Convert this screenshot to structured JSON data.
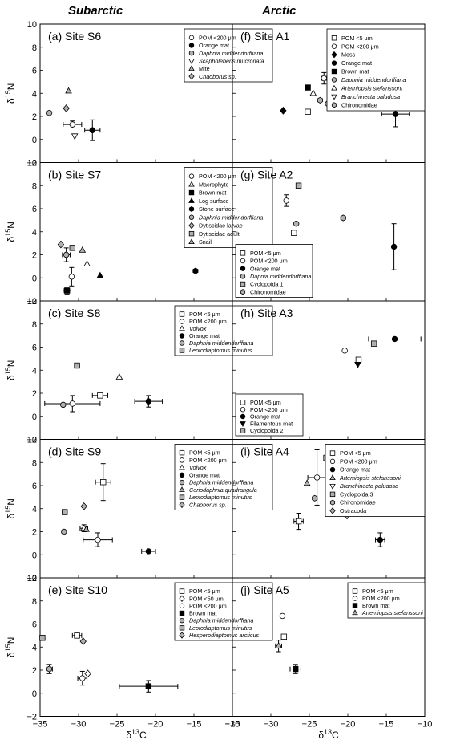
{
  "columns": {
    "left": "Subarctic",
    "right": "Arctic"
  },
  "y_axis_label": {
    "main": "δ",
    "sup": "15",
    "tail": "N"
  },
  "x_axis_label": {
    "main": "δ",
    "sup": "13",
    "tail": "C"
  },
  "x_ticks": [
    "−35",
    "−30",
    "−25",
    "−20",
    "−15",
    "−10"
  ],
  "y_ticks": [
    "−2",
    "0",
    "2",
    "4",
    "6",
    "8",
    "10"
  ],
  "chart_data": [
    {
      "type": "scatter",
      "title": "(a) Site S6",
      "xlim": [
        -35,
        -10
      ],
      "ylim": [
        -2,
        10
      ],
      "legend_position": "top-right",
      "series": [
        {
          "name": "POM <200 μm",
          "marker": "circle-open",
          "points": [
            {
              "x": -30.8,
              "y": 1.3,
              "xerr": 1.2,
              "yerr": 0.3
            }
          ]
        },
        {
          "name": "Orange mat",
          "marker": "circle-filled",
          "points": [
            {
              "x": -28.2,
              "y": 0.8,
              "xerr": 1.0,
              "yerr": 0.9
            }
          ]
        },
        {
          "name": "Daphnia middendorffiana",
          "marker": "circle-gray",
          "points": [
            {
              "x": -33.8,
              "y": 2.3
            }
          ]
        },
        {
          "name": "Scapholeberis mucronata",
          "marker": "triangle-down-open",
          "points": [
            {
              "x": -30.5,
              "y": 0.3
            }
          ]
        },
        {
          "name": "Mite",
          "marker": "triangle-up-gray",
          "points": [
            {
              "x": -31.3,
              "y": 4.2
            }
          ]
        },
        {
          "name": "Chaoborus sp.",
          "marker": "diamond-gray",
          "points": [
            {
              "x": -31.6,
              "y": 2.7
            }
          ]
        }
      ]
    },
    {
      "type": "scatter",
      "title": "(b) Site S7",
      "xlim": [
        -35,
        -10
      ],
      "ylim": [
        -2,
        10
      ],
      "legend_position": "top-right",
      "series": [
        {
          "name": "POM <200 μm",
          "marker": "circle-open",
          "points": [
            {
              "x": -30.9,
              "y": 0.1,
              "xerr": 0.2,
              "yerr": 0.8
            }
          ]
        },
        {
          "name": "Macrophyte",
          "marker": "triangle-up-open",
          "points": [
            {
              "x": -28.9,
              "y": 1.2
            }
          ]
        },
        {
          "name": "Brown mat",
          "marker": "square-filled",
          "points": [
            {
              "x": -31.5,
              "y": -1.1,
              "xerr": 0.5,
              "yerr": 0.3
            }
          ]
        },
        {
          "name": "Log surface",
          "marker": "triangle-up-filled",
          "points": [
            {
              "x": -27.2,
              "y": 0.2
            }
          ]
        },
        {
          "name": "Stone surface",
          "marker": "hexagon-filled",
          "points": [
            {
              "x": -14.8,
              "y": 0.6
            }
          ]
        },
        {
          "name": "Daphnia middendorffiana",
          "marker": "circle-gray",
          "points": [
            {
              "x": -31.6,
              "y": 2.0,
              "xerr": 0.5,
              "yerr": 0.6
            }
          ]
        },
        {
          "name": "Dytiscidae larvae",
          "marker": "diamond-gray",
          "points": [
            {
              "x": -32.3,
              "y": 2.9
            }
          ]
        },
        {
          "name": "Dytiscidae adult",
          "marker": "square-gray",
          "points": [
            {
              "x": -30.8,
              "y": 2.6
            }
          ]
        },
        {
          "name": "Snail",
          "marker": "triangle-up-gray",
          "points": [
            {
              "x": -29.5,
              "y": 2.4
            }
          ]
        }
      ]
    },
    {
      "type": "scatter",
      "title": "(c) Site S8",
      "xlim": [
        -35,
        -10
      ],
      "ylim": [
        -2,
        10
      ],
      "legend_position": "top-right",
      "series": [
        {
          "name": "POM <5 μm",
          "marker": "square-open",
          "points": [
            {
              "x": -27.2,
              "y": 1.8,
              "xerr": 1.0,
              "yerr": 0.2
            }
          ]
        },
        {
          "name": "POM <200 μm",
          "marker": "circle-open",
          "points": [
            {
              "x": -30.8,
              "y": 1.1,
              "xerr": 3.6,
              "yerr": 0.7
            }
          ]
        },
        {
          "name": "Volvox",
          "marker": "triangle-up-open",
          "points": [
            {
              "x": -24.7,
              "y": 3.4
            }
          ]
        },
        {
          "name": "Orange mat",
          "marker": "circle-filled",
          "points": [
            {
              "x": -20.9,
              "y": 1.3,
              "xerr": 1.8,
              "yerr": 0.5
            }
          ]
        },
        {
          "name": "Daphnia middendorffiana",
          "marker": "circle-gray",
          "points": [
            {
              "x": -32.0,
              "y": 1.0
            }
          ]
        },
        {
          "name": "Leptodiaptomus minutus",
          "marker": "square-gray",
          "points": [
            {
              "x": -30.2,
              "y": 4.4
            }
          ]
        }
      ]
    },
    {
      "type": "scatter",
      "title": "(d) Site S9",
      "xlim": [
        -35,
        -10
      ],
      "ylim": [
        -2,
        10
      ],
      "legend_position": "top-right",
      "series": [
        {
          "name": "POM <5 μm",
          "marker": "square-open",
          "points": [
            {
              "x": -26.8,
              "y": 6.3,
              "xerr": 1.0,
              "yerr": 1.6
            }
          ]
        },
        {
          "name": "POM <200 μm",
          "marker": "circle-open",
          "points": [
            {
              "x": -27.5,
              "y": 1.3,
              "xerr": 1.9,
              "yerr": 0.6
            }
          ]
        },
        {
          "name": "Volvox",
          "marker": "triangle-up-open",
          "points": [
            {
              "x": -29.3,
              "y": 2.3,
              "xerr": 0.5,
              "yerr": 0.3
            }
          ]
        },
        {
          "name": "Orange mat",
          "marker": "circle-filled",
          "points": [
            {
              "x": -20.9,
              "y": 0.3,
              "xerr": 0.9
            }
          ]
        },
        {
          "name": "Daphnia middendorffiana",
          "marker": "circle-gray",
          "points": [
            {
              "x": -31.9,
              "y": 2.0
            }
          ]
        },
        {
          "name": "Ceriodaphnia quadrangula",
          "marker": "triangle-up-gray",
          "points": [
            {
              "x": -29.0,
              "y": 2.2
            }
          ]
        },
        {
          "name": "Leptodiaptomus minutus",
          "marker": "square-gray",
          "points": [
            {
              "x": -31.8,
              "y": 3.7
            }
          ]
        },
        {
          "name": "Chaoborus sp.",
          "marker": "diamond-gray",
          "points": [
            {
              "x": -29.3,
              "y": 4.2
            }
          ]
        }
      ]
    },
    {
      "type": "scatter",
      "title": "(e) Site S10",
      "xlim": [
        -35,
        -10
      ],
      "ylim": [
        -2,
        10
      ],
      "legend_position": "top-right",
      "series": [
        {
          "name": "POM <5 μm",
          "marker": "square-open",
          "points": [
            {
              "x": -30.2,
              "y": 5.0,
              "xerr": 0.6
            }
          ]
        },
        {
          "name": "POM <50 μm",
          "marker": "diamond-open",
          "points": [
            {
              "x": -28.8,
              "y": 1.7
            }
          ]
        },
        {
          "name": "POM <200 μm",
          "marker": "circle-open",
          "points": [
            {
              "x": -29.5,
              "y": 1.3,
              "xerr": 0.6,
              "yerr": 0.6
            }
          ]
        },
        {
          "name": "Brown mat",
          "marker": "square-filled",
          "points": [
            {
              "x": -20.9,
              "y": 0.6,
              "xerr": 3.8,
              "yerr": 0.5
            }
          ]
        },
        {
          "name": "Daphnia middendorffiana",
          "marker": "circle-gray",
          "points": [
            {
              "x": -33.8,
              "y": 2.1,
              "xerr": 0.4,
              "yerr": 0.4
            }
          ]
        },
        {
          "name": "Leptodiaptomus minutus",
          "marker": "square-gray",
          "points": [
            {
              "x": -34.7,
              "y": 4.8
            }
          ]
        },
        {
          "name": "Hesperodiaptomus arcticus",
          "marker": "diamond-gray",
          "points": [
            {
              "x": -29.4,
              "y": 4.5
            }
          ]
        }
      ]
    },
    {
      "type": "scatter",
      "title": "(f) Site A1",
      "xlim": [
        -35,
        -10
      ],
      "ylim": [
        -2,
        10
      ],
      "legend_position": "top-right",
      "series": [
        {
          "name": "POM <5 μm",
          "marker": "square-open",
          "points": [
            {
              "x": -25.2,
              "y": 2.4
            }
          ]
        },
        {
          "name": "POM <200 μm",
          "marker": "circle-open",
          "points": [
            {
              "x": -23.1,
              "y": 5.3,
              "xerr": 0.3,
              "yerr": 0.5
            }
          ]
        },
        {
          "name": "Moss",
          "marker": "diamond-filled",
          "points": [
            {
              "x": -28.4,
              "y": 2.5
            }
          ]
        },
        {
          "name": "Orange mat",
          "marker": "circle-filled",
          "points": [
            {
              "x": -13.8,
              "y": 2.2,
              "xerr": 1.8,
              "yerr": 1.1
            }
          ]
        },
        {
          "name": "Brown mat",
          "marker": "square-filled",
          "points": [
            {
              "x": -25.2,
              "y": 4.5
            }
          ]
        },
        {
          "name": "Daphnia middendorffiana",
          "marker": "circle-gray",
          "points": [
            {
              "x": -22.6,
              "y": 3.1
            }
          ]
        },
        {
          "name": "Artemiopsis stefanssoni",
          "marker": "triangle-up-open",
          "points": [
            {
              "x": -24.5,
              "y": 4.0
            }
          ]
        },
        {
          "name": "Branchinecta paludosa",
          "marker": "triangle-down-open",
          "points": [
            {
              "x": -21.6,
              "y": 4.4
            }
          ]
        },
        {
          "name": "Chironomidae",
          "marker": "hexagon-gray",
          "points": [
            {
              "x": -23.6,
              "y": 3.4
            }
          ]
        }
      ]
    },
    {
      "type": "scatter",
      "title": "(g) Site A2",
      "xlim": [
        -35,
        -10
      ],
      "ylim": [
        -2,
        10
      ],
      "legend_position": "bottom-left",
      "series": [
        {
          "name": "POM <5 μm",
          "marker": "square-open",
          "points": [
            {
              "x": -27.0,
              "y": 3.9
            }
          ]
        },
        {
          "name": "POM <200 μm",
          "marker": "circle-open",
          "points": [
            {
              "x": -28.0,
              "y": 6.7,
              "yerr": 0.5
            }
          ]
        },
        {
          "name": "Orange mat",
          "marker": "circle-filled",
          "points": [
            {
              "x": -14.0,
              "y": 2.7,
              "yerr": 2.0
            }
          ]
        },
        {
          "name": "Dapnia middendorffiana",
          "marker": "circle-gray",
          "points": [
            {
              "x": -26.7,
              "y": 4.7
            }
          ]
        },
        {
          "name": "Cyclopoida 1",
          "marker": "square-gray",
          "points": [
            {
              "x": -26.4,
              "y": 8.0
            }
          ]
        },
        {
          "name": "Chironomidae",
          "marker": "hexagon-gray",
          "points": [
            {
              "x": -20.6,
              "y": 5.2
            }
          ]
        }
      ]
    },
    {
      "type": "scatter",
      "title": "(h) Site A3",
      "xlim": [
        -35,
        -10
      ],
      "ylim": [
        -2,
        10
      ],
      "legend_position": "bottom-left",
      "series": [
        {
          "name": "POM <5 μm",
          "marker": "square-open",
          "points": [
            {
              "x": -18.6,
              "y": 4.9
            }
          ]
        },
        {
          "name": "POM <200 μm",
          "marker": "circle-open",
          "points": [
            {
              "x": -20.4,
              "y": 5.7
            }
          ]
        },
        {
          "name": "Orange mat",
          "marker": "circle-filled",
          "points": [
            {
              "x": -13.9,
              "y": 6.7,
              "xerr": 3.4
            }
          ]
        },
        {
          "name": "Filamentous mat",
          "marker": "triangle-down-filled",
          "points": [
            {
              "x": -18.7,
              "y": 4.5
            }
          ]
        },
        {
          "name": "Cyclopoida 2",
          "marker": "square-gray",
          "points": [
            {
              "x": -16.6,
              "y": 6.3
            }
          ]
        }
      ]
    },
    {
      "type": "scatter",
      "title": "(i) Site A4",
      "xlim": [
        -35,
        -10
      ],
      "ylim": [
        -2,
        10
      ],
      "legend_position": "top-right",
      "series": [
        {
          "name": "POM <5 μm",
          "marker": "square-open",
          "points": [
            {
              "x": -26.4,
              "y": 2.9,
              "xerr": 0.6,
              "yerr": 0.7
            }
          ]
        },
        {
          "name": "POM <200 μm",
          "marker": "circle-open",
          "points": [
            {
              "x": -24.0,
              "y": 6.7,
              "xerr": 1.2,
              "yerr": 2.4
            }
          ]
        },
        {
          "name": "Orange mat",
          "marker": "circle-filled",
          "points": [
            {
              "x": -15.8,
              "y": 1.3,
              "xerr": 0.6,
              "yerr": 0.6
            }
          ]
        },
        {
          "name": "Artemiopsis stefanssoni",
          "marker": "triangle-up-gray",
          "points": [
            {
              "x": -25.3,
              "y": 6.2
            }
          ]
        },
        {
          "name": "Branchinecta paludosa",
          "marker": "triangle-down-open",
          "points": [
            {
              "x": -21.6,
              "y": 5.2
            }
          ]
        },
        {
          "name": "Cyclopoida 3",
          "marker": "square-gray",
          "points": [
            {
              "x": -22.8,
              "y": 8.4
            }
          ]
        },
        {
          "name": "Chironomidae",
          "marker": "hexagon-gray",
          "points": [
            {
              "x": -24.3,
              "y": 4.9
            }
          ]
        },
        {
          "name": "Ostracoda",
          "marker": "diamond-gray",
          "points": [
            {
              "x": -20.1,
              "y": 3.4
            }
          ]
        }
      ]
    },
    {
      "type": "scatter",
      "title": "(j) Site A5",
      "xlim": [
        -35,
        -10
      ],
      "ylim": [
        -2,
        10
      ],
      "legend_position": "top-right",
      "series": [
        {
          "name": "POM <5 μm",
          "marker": "square-open",
          "points": [
            {
              "x": -28.3,
              "y": 4.9
            }
          ]
        },
        {
          "name": "POM <200 μm",
          "marker": "circle-open",
          "points": [
            {
              "x": -28.5,
              "y": 6.7
            }
          ]
        },
        {
          "name": "Brown mat",
          "marker": "square-filled",
          "points": [
            {
              "x": -26.8,
              "y": 2.1,
              "xerr": 0.7,
              "yerr": 0.4
            }
          ]
        },
        {
          "name": "Artemiopsis stefanssoni",
          "marker": "triangle-up-gray",
          "points": [
            {
              "x": -29.0,
              "y": 4.1,
              "xerr": 0.4,
              "yerr": 0.5
            }
          ]
        }
      ]
    }
  ]
}
